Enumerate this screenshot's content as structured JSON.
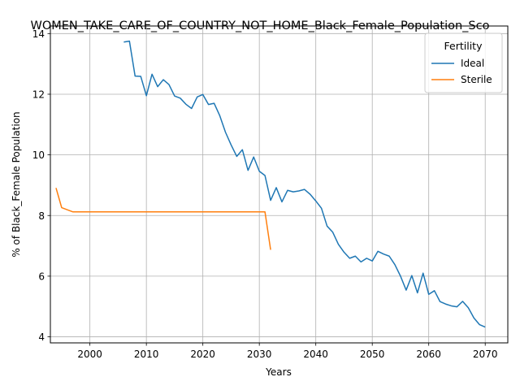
{
  "chart_data": {
    "type": "line",
    "title": "WOMEN_TAKE_CARE_OF_COUNTRY_NOT_HOME_Black_Female_Population_Sco",
    "xlabel": "Years",
    "ylabel": "% of Black_Female Population",
    "xlim": [
      1993,
      2074
    ],
    "ylim": [
      3.8,
      14.25
    ],
    "x_ticks": [
      2000,
      2010,
      2020,
      2030,
      2040,
      2050,
      2060,
      2070
    ],
    "y_ticks": [
      4,
      6,
      8,
      10,
      12,
      14
    ],
    "grid": true,
    "legend": {
      "title": "Fertility",
      "placement": "top-right"
    },
    "series": [
      {
        "name": "Ideal",
        "color": "#1f77b4",
        "x": [
          2006,
          2007,
          2008,
          2009,
          2010,
          2011,
          2012,
          2013,
          2014,
          2015,
          2016,
          2017,
          2018,
          2019,
          2020,
          2021,
          2022,
          2023,
          2024,
          2025,
          2026,
          2027,
          2028,
          2029,
          2030,
          2031,
          2032,
          2033,
          2034,
          2035,
          2036,
          2037,
          2038,
          2039,
          2040,
          2041,
          2042,
          2043,
          2044,
          2045,
          2046,
          2047,
          2048,
          2049,
          2050,
          2051,
          2052,
          2053,
          2054,
          2055,
          2056,
          2057,
          2058,
          2059,
          2060,
          2061,
          2062,
          2063,
          2064,
          2065,
          2066,
          2067,
          2068,
          2069,
          2070
        ],
        "values": [
          13.72,
          13.75,
          12.6,
          12.59,
          11.95,
          12.66,
          12.25,
          12.48,
          12.32,
          11.94,
          11.87,
          11.67,
          11.53,
          11.91,
          11.99,
          11.66,
          11.7,
          11.29,
          10.75,
          10.33,
          9.95,
          10.17,
          9.49,
          9.93,
          9.46,
          9.32,
          8.5,
          8.92,
          8.45,
          8.83,
          8.78,
          8.81,
          8.86,
          8.7,
          8.48,
          8.24,
          7.65,
          7.45,
          7.05,
          6.79,
          6.59,
          6.66,
          6.47,
          6.59,
          6.5,
          6.82,
          6.73,
          6.66,
          6.38,
          6.0,
          5.54,
          6.02,
          5.45,
          6.1,
          5.4,
          5.52,
          5.16,
          5.08,
          5.02,
          4.99,
          5.17,
          4.96,
          4.62,
          4.4,
          4.32
        ]
      },
      {
        "name": "Sterile",
        "color": "#ff7f0e",
        "x": [
          1994,
          1995,
          1996,
          1997,
          1998,
          1999,
          2000,
          2001,
          2002,
          2003,
          2004,
          2005,
          2006,
          2007,
          2008,
          2009,
          2010,
          2011,
          2012,
          2013,
          2014,
          2015,
          2016,
          2017,
          2018,
          2019,
          2020,
          2021,
          2022,
          2023,
          2024,
          2025,
          2026,
          2027,
          2028,
          2029,
          2030,
          2031,
          2032
        ],
        "values": [
          8.91,
          8.26,
          8.19,
          8.12,
          8.12,
          8.12,
          8.12,
          8.12,
          8.12,
          8.12,
          8.12,
          8.12,
          8.12,
          8.12,
          8.12,
          8.12,
          8.12,
          8.12,
          8.12,
          8.12,
          8.12,
          8.12,
          8.12,
          8.12,
          8.12,
          8.12,
          8.12,
          8.12,
          8.12,
          8.12,
          8.12,
          8.12,
          8.12,
          8.12,
          8.12,
          8.12,
          8.12,
          8.12,
          6.87
        ]
      }
    ]
  }
}
